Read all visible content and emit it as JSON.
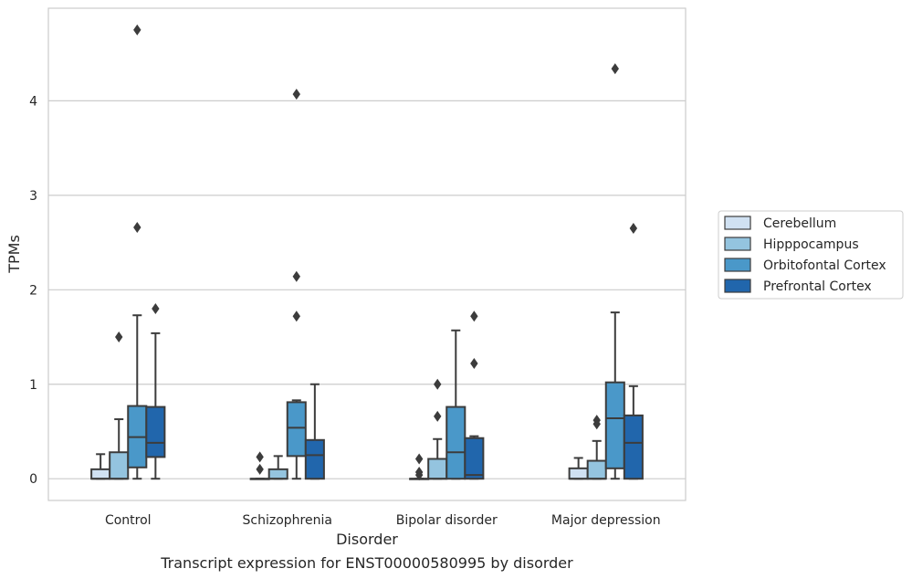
{
  "chart_data": {
    "type": "box",
    "caption": "Transcript expression for ENST00000580995 by disorder",
    "xlabel": "Disorder",
    "ylabel": "TPMs",
    "ylim": [
      -0.23,
      4.98
    ],
    "yticks": [
      0,
      1,
      2,
      3,
      4
    ],
    "grid": "horizontal",
    "legend_position": "right",
    "categories": [
      "Control",
      "Schizophrenia",
      "Bipolar disorder",
      "Major depression"
    ],
    "series": [
      {
        "name": "Cerebellum",
        "color": "#d0e1f2",
        "boxes": [
          {
            "min": 0,
            "q1": 0,
            "median": 0,
            "q3": 0.1,
            "max": 0.26,
            "outliers": []
          },
          {
            "min": 0,
            "q1": 0,
            "median": 0,
            "q3": 0,
            "max": 0,
            "outliers": [
              0.1,
              0.23
            ]
          },
          {
            "min": 0,
            "q1": 0,
            "median": 0,
            "q3": 0,
            "max": 0,
            "outliers": [
              0.04,
              0.07,
              0.21
            ]
          },
          {
            "min": 0,
            "q1": 0,
            "median": 0,
            "q3": 0.11,
            "max": 0.22,
            "outliers": []
          }
        ]
      },
      {
        "name": "Hipppocampus",
        "color": "#94c4df",
        "boxes": [
          {
            "min": 0,
            "q1": 0,
            "median": 0,
            "q3": 0.28,
            "max": 0.63,
            "outliers": [
              1.5
            ]
          },
          {
            "min": 0,
            "q1": 0,
            "median": 0,
            "q3": 0.1,
            "max": 0.24,
            "outliers": []
          },
          {
            "min": 0,
            "q1": 0,
            "median": 0,
            "q3": 0.21,
            "max": 0.42,
            "outliers": [
              0.66,
              1.0
            ]
          },
          {
            "min": 0,
            "q1": 0,
            "median": 0,
            "q3": 0.19,
            "max": 0.4,
            "outliers": [
              0.58,
              0.62
            ]
          }
        ]
      },
      {
        "name": "Orbitofontal Cortex",
        "color": "#4a98c9",
        "boxes": [
          {
            "min": 0,
            "q1": 0.12,
            "median": 0.44,
            "q3": 0.77,
            "max": 1.73,
            "outliers": [
              2.66,
              4.75
            ]
          },
          {
            "min": 0,
            "q1": 0.24,
            "median": 0.54,
            "q3": 0.81,
            "max": 0.83,
            "outliers": [
              1.72,
              2.14,
              4.07
            ]
          },
          {
            "min": 0,
            "q1": 0,
            "median": 0.28,
            "q3": 0.76,
            "max": 1.57,
            "outliers": []
          },
          {
            "min": 0,
            "q1": 0.11,
            "median": 0.64,
            "q3": 1.02,
            "max": 1.76,
            "outliers": [
              4.34
            ]
          }
        ]
      },
      {
        "name": "Prefrontal Cortex",
        "color": "#2166ac",
        "boxes": [
          {
            "min": 0,
            "q1": 0.23,
            "median": 0.38,
            "q3": 0.76,
            "max": 1.54,
            "outliers": [
              1.8
            ]
          },
          {
            "min": 0,
            "q1": 0,
            "median": 0.25,
            "q3": 0.41,
            "max": 1.0,
            "outliers": []
          },
          {
            "min": 0,
            "q1": 0,
            "median": 0.04,
            "q3": 0.43,
            "max": 0.45,
            "outliers": [
              1.22,
              1.72
            ]
          },
          {
            "min": 0,
            "q1": 0,
            "median": 0.38,
            "q3": 0.67,
            "max": 0.98,
            "outliers": [
              2.65
            ]
          }
        ]
      }
    ]
  }
}
